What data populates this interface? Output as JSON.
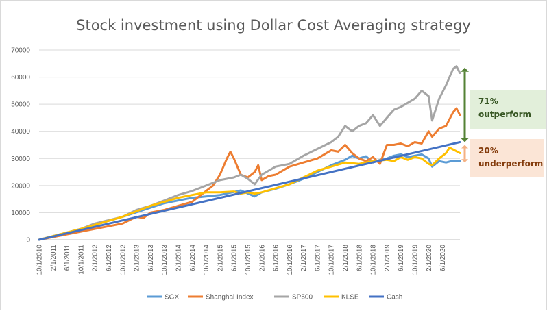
{
  "chart_data": {
    "type": "line",
    "title": "Stock investment using Dollar Cost Averaging strategy",
    "xlabel": "",
    "ylabel": "",
    "ylim": [
      0,
      70000
    ],
    "yticks": [
      0,
      10000,
      20000,
      30000,
      40000,
      50000,
      60000,
      70000
    ],
    "x_tick_labels": [
      "10/1/2010",
      "2/1/2011",
      "6/1/2011",
      "10/1/2011",
      "2/1/2012",
      "6/1/2012",
      "10/1/2012",
      "2/1/2013",
      "6/1/2013",
      "10/1/2013",
      "2/1/2014",
      "6/1/2014",
      "10/1/2014",
      "2/1/2015",
      "6/1/2015",
      "10/1/2015",
      "2/1/2016",
      "6/1/2016",
      "10/1/2016",
      "2/1/2017",
      "6/1/2017",
      "10/1/2017",
      "2/1/2018",
      "6/1/2018",
      "10/1/2018",
      "2/1/2019",
      "6/1/2019",
      "10/1/2019",
      "2/1/2020",
      "6/1/2020"
    ],
    "x_tick_months": [
      0,
      4,
      8,
      12,
      16,
      20,
      24,
      28,
      32,
      36,
      40,
      44,
      48,
      52,
      56,
      60,
      64,
      68,
      72,
      76,
      80,
      84,
      88,
      92,
      96,
      100,
      104,
      108,
      112,
      116
    ],
    "x_range_months": [
      0,
      121
    ],
    "grid": true,
    "legend_position": "bottom",
    "series": [
      {
        "name": "SGX",
        "color": "#5b9bd5",
        "points": [
          [
            0,
            0
          ],
          [
            12,
            4000
          ],
          [
            24,
            8500
          ],
          [
            36,
            13500
          ],
          [
            44,
            15500
          ],
          [
            52,
            16500
          ],
          [
            58,
            18200
          ],
          [
            62,
            16000
          ],
          [
            64,
            17500
          ],
          [
            68,
            18800
          ],
          [
            72,
            20500
          ],
          [
            76,
            22500
          ],
          [
            80,
            25000
          ],
          [
            84,
            27500
          ],
          [
            88,
            29500
          ],
          [
            90,
            31000
          ],
          [
            92,
            30000
          ],
          [
            94,
            30800
          ],
          [
            96,
            28500
          ],
          [
            98,
            29500
          ],
          [
            100,
            30000
          ],
          [
            102,
            31000
          ],
          [
            104,
            31500
          ],
          [
            106,
            30500
          ],
          [
            108,
            31000
          ],
          [
            110,
            31500
          ],
          [
            112,
            30000
          ],
          [
            113,
            27000
          ],
          [
            115,
            29000
          ],
          [
            117,
            28500
          ],
          [
            119,
            29200
          ],
          [
            121,
            29000
          ]
        ]
      },
      {
        "name": "Shanghai Index",
        "color": "#ed7d31",
        "points": [
          [
            0,
            0
          ],
          [
            12,
            3000
          ],
          [
            24,
            6000
          ],
          [
            28,
            8500
          ],
          [
            30,
            8000
          ],
          [
            32,
            10000
          ],
          [
            36,
            11000
          ],
          [
            40,
            12500
          ],
          [
            44,
            14000
          ],
          [
            48,
            18000
          ],
          [
            50,
            20000
          ],
          [
            52,
            24000
          ],
          [
            54,
            30000
          ],
          [
            55,
            32500
          ],
          [
            56,
            30000
          ],
          [
            58,
            24000
          ],
          [
            60,
            23000
          ],
          [
            62,
            25000
          ],
          [
            63,
            27500
          ],
          [
            64,
            22000
          ],
          [
            66,
            23500
          ],
          [
            68,
            24000
          ],
          [
            72,
            27000
          ],
          [
            76,
            28500
          ],
          [
            80,
            30000
          ],
          [
            84,
            33000
          ],
          [
            86,
            32500
          ],
          [
            88,
            35000
          ],
          [
            90,
            32000
          ],
          [
            92,
            30000
          ],
          [
            94,
            29000
          ],
          [
            96,
            30500
          ],
          [
            98,
            28000
          ],
          [
            100,
            35000
          ],
          [
            102,
            35000
          ],
          [
            104,
            35500
          ],
          [
            106,
            34500
          ],
          [
            108,
            36000
          ],
          [
            110,
            35500
          ],
          [
            112,
            40000
          ],
          [
            113,
            38000
          ],
          [
            115,
            41000
          ],
          [
            117,
            42000
          ],
          [
            119,
            47000
          ],
          [
            120,
            48500
          ],
          [
            121,
            46000
          ]
        ]
      },
      {
        "name": "SP500",
        "color": "#a5a5a5",
        "points": [
          [
            0,
            0
          ],
          [
            12,
            4000
          ],
          [
            16,
            6000
          ],
          [
            24,
            8500
          ],
          [
            28,
            11000
          ],
          [
            32,
            12500
          ],
          [
            36,
            14500
          ],
          [
            40,
            16500
          ],
          [
            44,
            18000
          ],
          [
            48,
            20000
          ],
          [
            52,
            22000
          ],
          [
            56,
            23000
          ],
          [
            58,
            24000
          ],
          [
            60,
            22500
          ],
          [
            62,
            20500
          ],
          [
            64,
            24000
          ],
          [
            68,
            27000
          ],
          [
            72,
            28000
          ],
          [
            76,
            31000
          ],
          [
            80,
            33500
          ],
          [
            84,
            36000
          ],
          [
            86,
            38000
          ],
          [
            88,
            42000
          ],
          [
            90,
            40000
          ],
          [
            92,
            42000
          ],
          [
            94,
            43000
          ],
          [
            96,
            46000
          ],
          [
            98,
            42000
          ],
          [
            100,
            45000
          ],
          [
            102,
            48000
          ],
          [
            104,
            49000
          ],
          [
            106,
            50500
          ],
          [
            108,
            52000
          ],
          [
            110,
            55000
          ],
          [
            112,
            53000
          ],
          [
            113,
            44000
          ],
          [
            115,
            52000
          ],
          [
            117,
            57000
          ],
          [
            119,
            63000
          ],
          [
            120,
            64000
          ],
          [
            121,
            61500
          ]
        ]
      },
      {
        "name": "KLSE",
        "color": "#ffc000",
        "points": [
          [
            0,
            0
          ],
          [
            12,
            4000
          ],
          [
            24,
            8500
          ],
          [
            32,
            12500
          ],
          [
            36,
            14000
          ],
          [
            40,
            15500
          ],
          [
            44,
            16500
          ],
          [
            48,
            17500
          ],
          [
            52,
            17500
          ],
          [
            56,
            17800
          ],
          [
            58,
            17000
          ],
          [
            60,
            17500
          ],
          [
            62,
            17000
          ],
          [
            64,
            17500
          ],
          [
            68,
            19000
          ],
          [
            72,
            20500
          ],
          [
            76,
            23000
          ],
          [
            80,
            25500
          ],
          [
            84,
            27000
          ],
          [
            88,
            28500
          ],
          [
            92,
            28000
          ],
          [
            96,
            29000
          ],
          [
            100,
            29500
          ],
          [
            102,
            29000
          ],
          [
            104,
            30500
          ],
          [
            106,
            29500
          ],
          [
            108,
            30500
          ],
          [
            110,
            30000
          ],
          [
            112,
            28000
          ],
          [
            113,
            27500
          ],
          [
            115,
            30000
          ],
          [
            117,
            32000
          ],
          [
            118,
            34000
          ],
          [
            121,
            32000
          ]
        ]
      },
      {
        "name": "Cash",
        "color": "#4472c4",
        "points": [
          [
            0,
            0
          ],
          [
            121,
            36000
          ]
        ]
      }
    ]
  },
  "legend": [
    {
      "name": "SGX",
      "color": "#5b9bd5"
    },
    {
      "name": "Shanghai Index",
      "color": "#ed7d31"
    },
    {
      "name": "SP500",
      "color": "#a5a5a5"
    },
    {
      "name": "KLSE",
      "color": "#ffc000"
    },
    {
      "name": "Cash",
      "color": "#4472c4"
    }
  ],
  "annotations": {
    "outperform": {
      "percent": "71%",
      "text": "outperform",
      "arrow_color": "#548235",
      "box_color": "#e2efda",
      "text_color": "#375623",
      "from_value": 36000,
      "to_value": 61500
    },
    "underperform": {
      "percent": "20%",
      "text": "underperform",
      "arrow_color": "#f4b183",
      "box_color": "#fbe5d6",
      "text_color": "#843c0c",
      "from_value": 29000,
      "to_value": 36000
    }
  }
}
